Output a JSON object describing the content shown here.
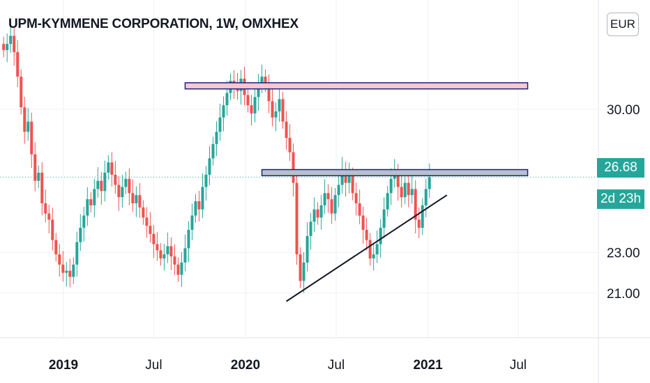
{
  "header": {
    "title": "UPM-KYMMENE CORPORATION, 1W, OMXHEX",
    "currency": "EUR"
  },
  "price_scale": {
    "current_price": "26.68",
    "countdown": "2d 23h"
  },
  "colors": {
    "up": "#26a69a",
    "down": "#ef5350",
    "resistance_fill": "#f8c8d4",
    "support_fill": "#b8c0cc",
    "zone_border": "#1a237e",
    "trendline": "#131722"
  },
  "chart_data": {
    "type": "candlestick",
    "symbol": "UPM-KYMMENE CORPORATION",
    "interval": "1W",
    "exchange": "OMXHEX",
    "y_ticks": [
      30.0,
      23.0,
      21.0
    ],
    "y_tick_labels": [
      "30.00",
      "23.00",
      "21.00"
    ],
    "x_ticks": [
      "2019",
      "Jul",
      "2020",
      "Jul",
      "2021",
      "Jul"
    ],
    "x_tick_dates": [
      "2019-01-01",
      "2019-07-01",
      "2020-01-01",
      "2020-07-01",
      "2021-01-01",
      "2021-07-01"
    ],
    "last_price": 26.68,
    "close_series_start": "2018-09-03",
    "close_series_end": "2020-12-07",
    "closes": [
      32.9,
      33.2,
      33.6,
      32.8,
      31.6,
      30.1,
      28.9,
      29.4,
      27.8,
      26.5,
      26.9,
      25.4,
      24.9,
      24.6,
      23.6,
      22.9,
      22.4,
      22.0,
      22.1,
      21.8,
      22.4,
      23.5,
      24.2,
      24.8,
      25.6,
      25.3,
      26.1,
      26.5,
      26.0,
      26.9,
      27.4,
      26.8,
      26.3,
      25.7,
      26.2,
      26.6,
      25.9,
      25.4,
      25.8,
      25.2,
      24.7,
      24.3,
      23.9,
      23.4,
      23.1,
      22.7,
      22.9,
      23.3,
      22.8,
      22.4,
      21.9,
      22.5,
      23.2,
      24.1,
      24.8,
      25.5,
      25.1,
      26.2,
      26.8,
      27.6,
      28.3,
      28.9,
      29.6,
      30.2,
      30.8,
      31.4,
      31.1,
      30.9,
      31.5,
      30.7,
      30.2,
      29.8,
      30.6,
      31.3,
      31.6,
      31.2,
      30.4,
      29.6,
      29.9,
      30.5,
      29.4,
      28.6,
      27.9,
      26.4,
      22.9,
      21.6,
      22.5,
      23.8,
      24.5,
      25.1,
      24.7,
      25.3,
      25.9,
      25.6,
      24.9,
      25.8,
      26.3,
      27.0,
      26.4,
      26.8,
      25.9,
      25.4,
      24.8,
      24.1,
      23.6,
      22.7,
      22.9,
      23.4,
      24.2,
      25.1,
      25.9,
      26.6,
      26.9,
      26.2,
      25.7,
      26.4,
      25.8,
      26.1,
      24.6,
      24.2,
      25.3,
      26.1,
      26.68
    ],
    "horizontal_zones": [
      {
        "name": "resistance",
        "y_from": 31.0,
        "y_to": 31.3,
        "date_from": "2019-09-02",
        "date_to": "2021-07-20"
      },
      {
        "name": "support",
        "y_from": 26.75,
        "y_to": 27.05,
        "date_from": "2020-02-03",
        "date_to": "2021-07-20"
      }
    ],
    "trendline": {
      "date_from": "2020-03-23",
      "y_from": 20.6,
      "date_to": "2021-02-08",
      "y_to": 25.8
    },
    "grid": true
  }
}
